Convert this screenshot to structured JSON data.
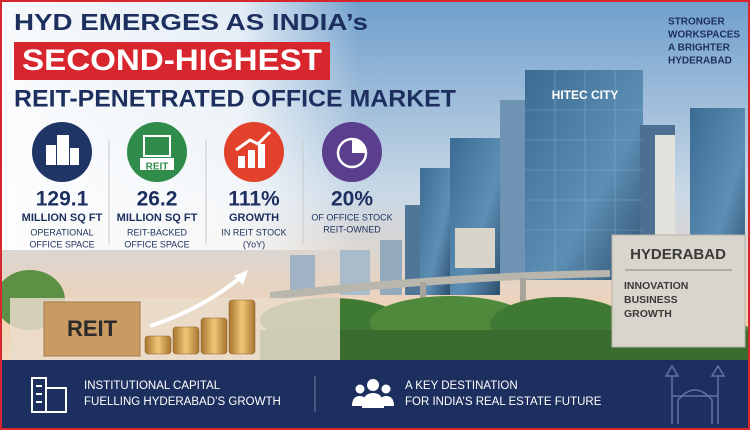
{
  "header": {
    "title_line1": "HYD EMERGES AS INDIA’s",
    "title_highlight": "SECOND-HIGHEST",
    "title_line3": "REIT-PENETRATED OFFICE MARKET",
    "tagline": [
      "STRONGER",
      "WORKSPACES",
      "A BRIGHTER",
      "HYDERABAD"
    ]
  },
  "stats": [
    {
      "value": "129.1",
      "unit": "MILLION SQ FT",
      "caption": [
        "OPERATIONAL",
        "OFFICE SPACE"
      ]
    },
    {
      "icon_text": "REIT",
      "value": "26.2",
      "unit": "MILLION SQ FT",
      "caption": [
        "REIT-BACKED",
        "OFFICE SPACE"
      ]
    },
    {
      "value": "111%",
      "unit": "GROWTH",
      "caption": [
        "IN REIT STOCK",
        "(YoY)"
      ]
    },
    {
      "value": "20%",
      "caption": [
        "OF OFFICE STOCK",
        "REIT-OWNED"
      ]
    }
  ],
  "scene": {
    "tower_sign": "HITEC CITY",
    "monument_title": "HYDERABAD",
    "monument_lines": [
      "INNOVATION",
      "BUSINESS",
      "GROWTH"
    ],
    "block_label": "REIT"
  },
  "footer": [
    {
      "lines": [
        "INSTITUTIONAL CAPITAL",
        "FUELLING HYDERABAD’S GROWTH"
      ]
    },
    {
      "lines": [
        "A KEY DESTINATION",
        "FOR INDIA’S REAL ESTATE FUTURE"
      ]
    }
  ]
}
